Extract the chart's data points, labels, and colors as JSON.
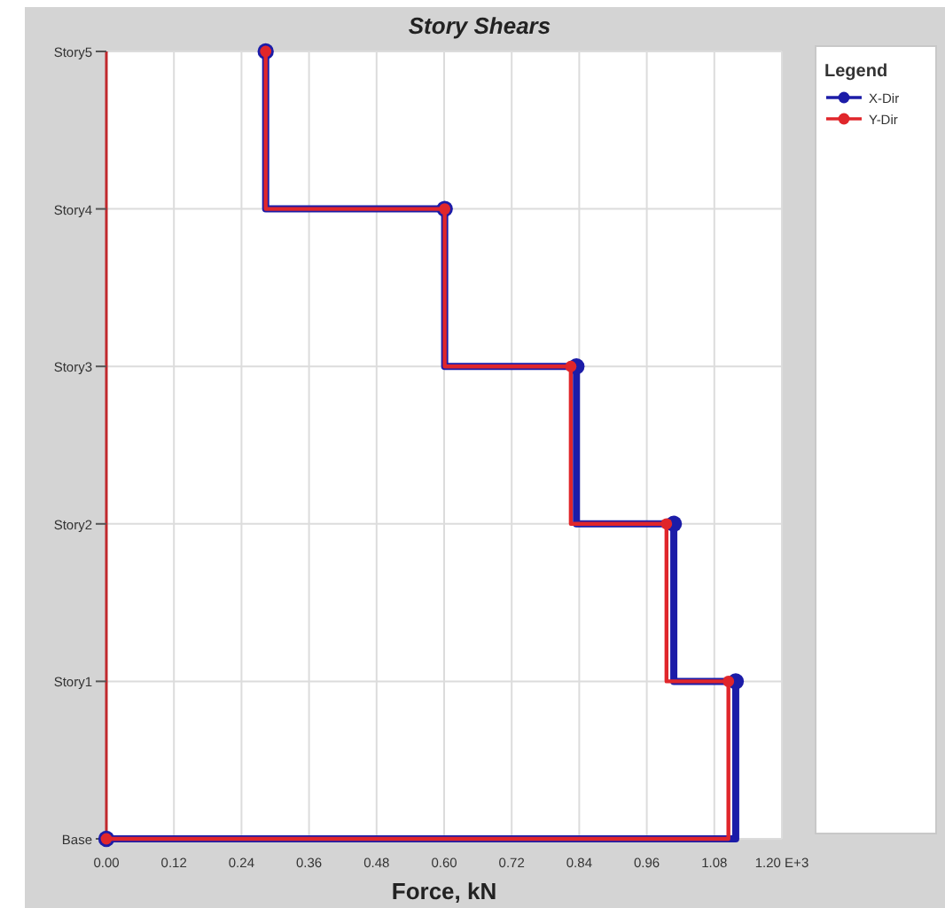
{
  "chart_data": {
    "type": "step",
    "title": "Story Shears",
    "xlabel": "Force, kN",
    "legend_title": "Legend",
    "orientation": "horizontal",
    "categories": [
      "Story5",
      "Story4",
      "Story3",
      "Story2",
      "Story1",
      "Base"
    ],
    "series": [
      {
        "name": "X-Dir",
        "color": "#1c1ca8",
        "values": [
          0.283,
          0.601,
          0.835,
          1.008,
          1.118,
          0
        ]
      },
      {
        "name": "Y-Dir",
        "color": "#e0262b",
        "values": [
          0.283,
          0.601,
          0.825,
          0.995,
          1.105,
          0
        ]
      }
    ],
    "xlim": [
      0,
      1.2
    ],
    "xticks": [
      {
        "value": 0,
        "label": "0.00"
      },
      {
        "value": 0.12,
        "label": "0.12"
      },
      {
        "value": 0.24,
        "label": "0.24"
      },
      {
        "value": 0.36,
        "label": "0.36"
      },
      {
        "value": 0.48,
        "label": "0.48"
      },
      {
        "value": 0.6,
        "label": "0.60"
      },
      {
        "value": 0.72,
        "label": "0.72"
      },
      {
        "value": 0.84,
        "label": "0.84"
      },
      {
        "value": 0.96,
        "label": "0.96"
      },
      {
        "value": 1.08,
        "label": "1.08"
      },
      {
        "value": 1.2,
        "label": "1.20 E+3"
      }
    ],
    "grid": true,
    "legend": "right",
    "marker": "circle",
    "line_style": "solid"
  }
}
